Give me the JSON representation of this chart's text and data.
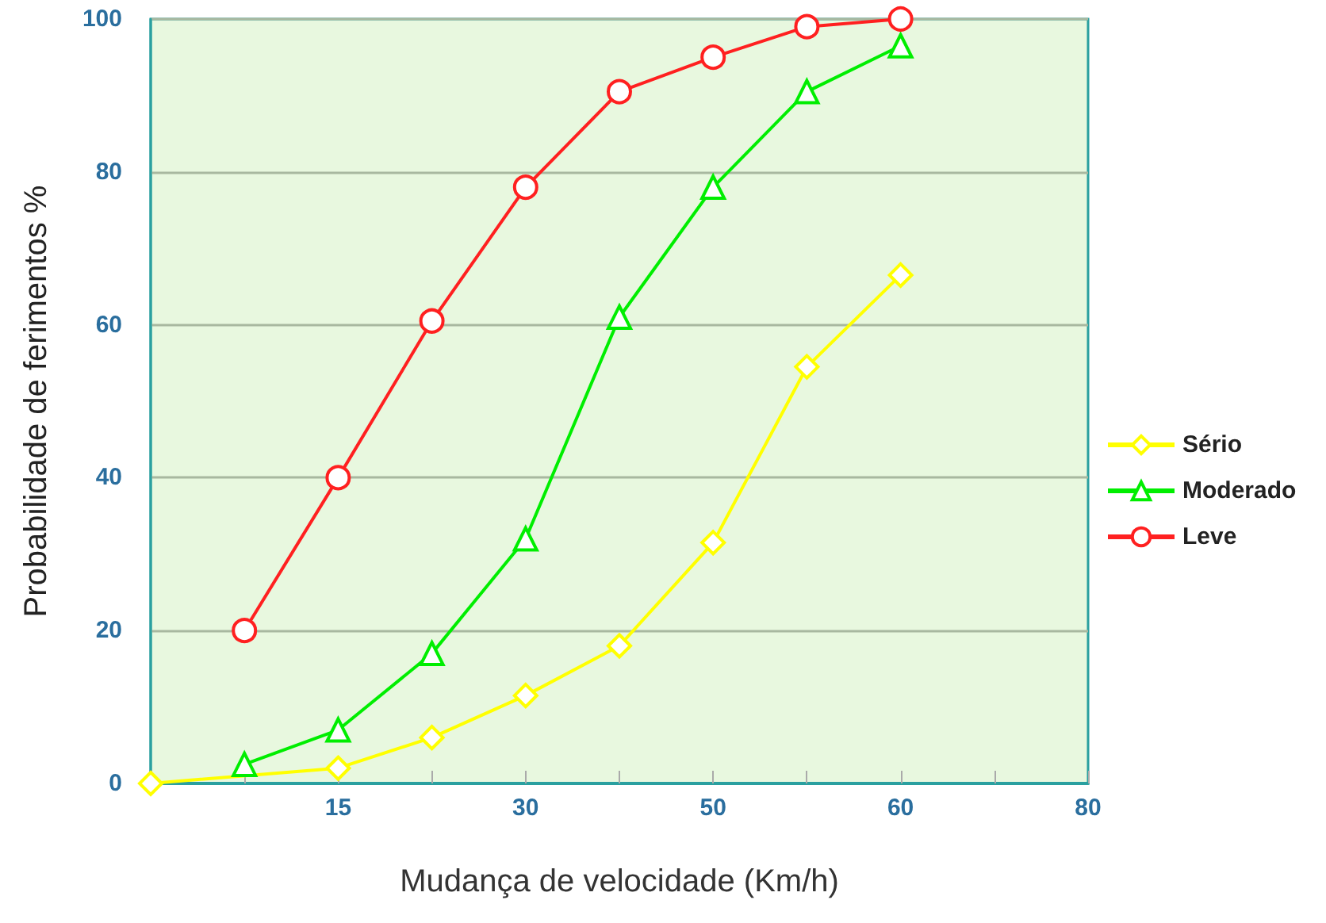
{
  "chart_data": {
    "type": "line",
    "xlabel": "Mudança de velocidade (Km/h)",
    "ylabel": "Probabilidade de ferimentos %",
    "categories": [
      null,
      null,
      "15",
      null,
      "30",
      null,
      "50",
      null,
      "60",
      null,
      "80"
    ],
    "series": [
      {
        "name": "Sério",
        "color": "#ffff00",
        "marker": "diamond",
        "values": [
          0,
          null,
          2,
          6,
          11.5,
          18,
          31.5,
          54.5,
          66.5,
          null,
          null
        ]
      },
      {
        "name": "Moderado",
        "color": "#00ee00",
        "marker": "triangle",
        "values": [
          null,
          2.5,
          7,
          17,
          32,
          61,
          78,
          90.5,
          96.5,
          null,
          null
        ]
      },
      {
        "name": "Leve",
        "color": "#ff2020",
        "marker": "circle",
        "values": [
          null,
          20,
          40,
          60.5,
          78,
          90.5,
          95,
          99,
          100,
          null,
          null
        ]
      }
    ],
    "ylim": [
      0,
      100
    ],
    "yticks": [
      0,
      20,
      40,
      60,
      80,
      100
    ],
    "grid": "y",
    "legend": "right"
  }
}
